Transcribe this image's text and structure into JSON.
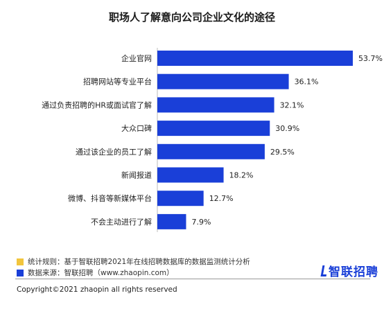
{
  "title": "职场人了解意向公司企业文化的途径",
  "chart_data": {
    "type": "bar",
    "orientation": "horizontal",
    "title": "职场人了解意向公司企业文化的途径",
    "categories": [
      "企业官网",
      "招聘网站等专业平台",
      "通过负责招聘的HR或面试官了解",
      "大众口碑",
      "通过该企业的员工了解",
      "新闻报道",
      "微博、抖音等新媒体平台",
      "不会主动进行了解"
    ],
    "values": [
      53.7,
      36.1,
      32.1,
      30.9,
      29.5,
      18.2,
      12.7,
      7.9
    ],
    "labels": [
      "53.7%",
      "36.1%",
      "32.1%",
      "30.9%",
      "29.5%",
      "18.2%",
      "12.7%",
      "7.9%"
    ],
    "xlim": [
      0,
      53.7
    ],
    "color": "#1a3fd8",
    "grid": false
  },
  "notes": {
    "rule": "统计规则：基于智联招聘2021年在线招聘数据库的数据监测统计分析",
    "rule_color": "#f2c53d",
    "source": "数据来源：智联招聘（www.zhaopin.com）",
    "source_color": "#1a3fd8"
  },
  "logo": "智联招聘",
  "copyright": "Copyright©2021 zhaopin  all rights reserved"
}
